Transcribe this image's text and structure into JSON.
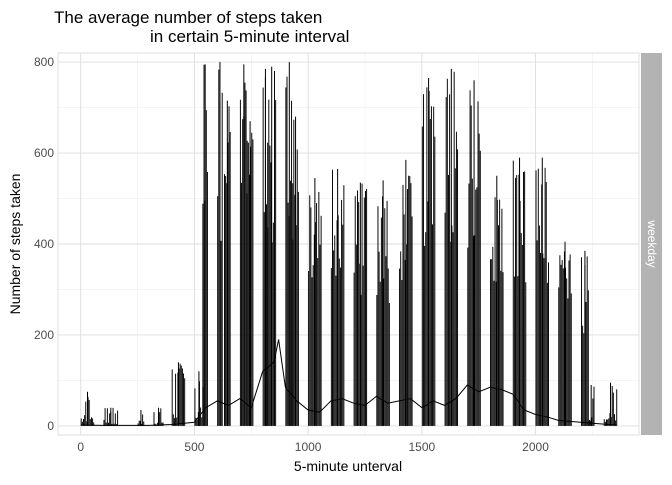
{
  "chart_data": {
    "type": "bar",
    "title": [
      "The average  number of steps taken",
      "in certain 5-minute interval"
    ],
    "xlabel": "5-minute unterval",
    "ylabel": "Number of steps taken",
    "facet_label": "weekday",
    "xlim": [
      -100,
      2455
    ],
    "ylim": [
      -20,
      820
    ],
    "x_ticks": [
      0,
      500,
      1000,
      1500,
      2000
    ],
    "y_ticks": [
      0,
      200,
      400,
      600,
      800
    ],
    "grid": true,
    "colors": {
      "bars": "#000000",
      "grid": "#dcdcdc",
      "strip": "#b3b3b3",
      "strip_text": "#ffffff",
      "panel_border": "#dcdcdc"
    },
    "groups": [
      {
        "start": 0,
        "end": 55,
        "max": 75
      },
      {
        "start": 100,
        "end": 160,
        "max": 40
      },
      {
        "start": 250,
        "end": 275,
        "max": 35
      },
      {
        "start": 320,
        "end": 360,
        "max": 40
      },
      {
        "start": 400,
        "end": 455,
        "max": 140
      },
      {
        "start": 500,
        "end": 535,
        "max": 120
      },
      {
        "start": 535,
        "end": 555,
        "max": 795
      },
      {
        "start": 600,
        "end": 620,
        "max": 800
      },
      {
        "start": 630,
        "end": 655,
        "max": 715
      },
      {
        "start": 700,
        "end": 730,
        "max": 795
      },
      {
        "start": 730,
        "end": 755,
        "max": 670
      },
      {
        "start": 800,
        "end": 820,
        "max": 785
      },
      {
        "start": 820,
        "end": 855,
        "max": 790
      },
      {
        "start": 900,
        "end": 930,
        "max": 800
      },
      {
        "start": 930,
        "end": 955,
        "max": 680
      },
      {
        "start": 1000,
        "end": 1055,
        "max": 545
      },
      {
        "start": 1100,
        "end": 1155,
        "max": 565
      },
      {
        "start": 1200,
        "end": 1255,
        "max": 535
      },
      {
        "start": 1300,
        "end": 1355,
        "max": 540
      },
      {
        "start": 1400,
        "end": 1455,
        "max": 585
      },
      {
        "start": 1500,
        "end": 1555,
        "max": 765
      },
      {
        "start": 1600,
        "end": 1655,
        "max": 785
      },
      {
        "start": 1700,
        "end": 1755,
        "max": 760
      },
      {
        "start": 1800,
        "end": 1855,
        "max": 550
      },
      {
        "start": 1900,
        "end": 1955,
        "max": 590
      },
      {
        "start": 2000,
        "end": 2055,
        "max": 590
      },
      {
        "start": 2100,
        "end": 2155,
        "max": 405
      },
      {
        "start": 2200,
        "end": 2230,
        "max": 385
      },
      {
        "start": 2230,
        "end": 2255,
        "max": 90
      },
      {
        "start": 2300,
        "end": 2355,
        "max": 95
      }
    ],
    "mean_line": {
      "x": [
        0,
        100,
        200,
        300,
        400,
        500,
        550,
        600,
        650,
        700,
        750,
        800,
        850,
        870,
        900,
        950,
        1000,
        1050,
        1100,
        1150,
        1200,
        1250,
        1300,
        1350,
        1400,
        1450,
        1500,
        1550,
        1600,
        1650,
        1700,
        1750,
        1800,
        1850,
        1900,
        1950,
        2000,
        2050,
        2100,
        2150,
        2200,
        2250,
        2300,
        2355
      ],
      "y": [
        2,
        1,
        1,
        1,
        3,
        8,
        40,
        55,
        45,
        60,
        40,
        120,
        140,
        190,
        85,
        55,
        35,
        30,
        55,
        60,
        50,
        45,
        65,
        50,
        55,
        60,
        40,
        55,
        45,
        60,
        90,
        75,
        85,
        80,
        70,
        35,
        25,
        20,
        12,
        10,
        8,
        6,
        4,
        2
      ]
    }
  }
}
